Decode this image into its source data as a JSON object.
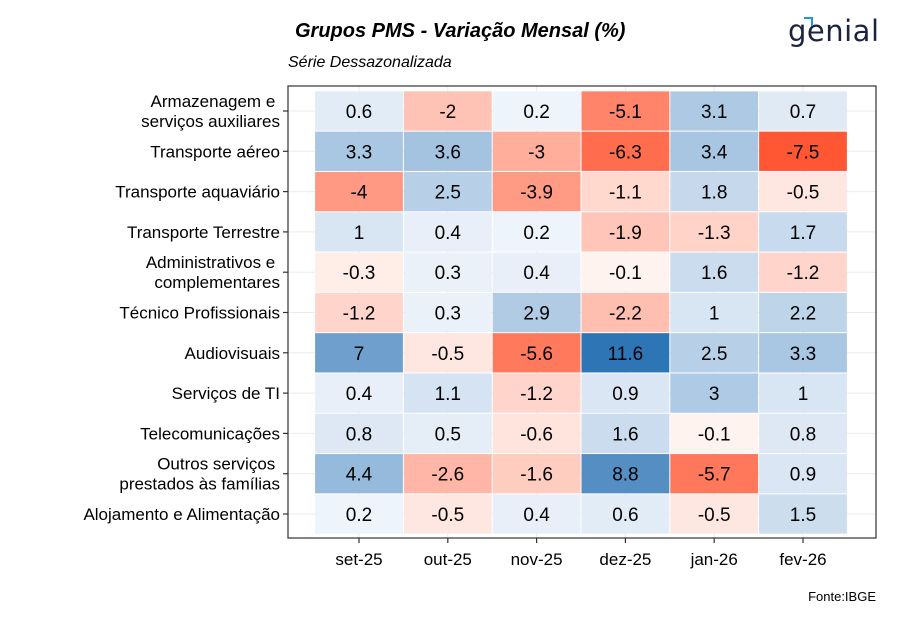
{
  "header": {
    "title": "Grupos PMS - Variação Mensal (%)",
    "subtitle": "Série Dessazonalizada",
    "logo_text": "genial"
  },
  "footer": {
    "source": "Fonte:IBGE"
  },
  "colors": {
    "negative_max": "#ff5733",
    "zero": "#ffffff",
    "positive_max": "#2e75b6",
    "grid": "#ebebeb",
    "border": "#333333"
  },
  "chart_data": {
    "type": "heatmap",
    "title": "Grupos PMS - Variação Mensal (%)",
    "subtitle": "Série Dessazonalizada",
    "xlabel": "",
    "ylabel": "",
    "x": [
      "set-25",
      "out-25",
      "nov-25",
      "dez-25",
      "jan-26",
      "fev-26"
    ],
    "y": [
      "Armazenagem e \nserviços auxiliares",
      "Transporte aéreo",
      "Transporte aquaviário",
      "Transporte Terrestre",
      "Administrativos e \ncomplementares",
      "Técnico Profissionais",
      "Audiovisuais",
      "Serviços de TI",
      "Telecomunicações",
      "Outros serviços \nprestados às famílias",
      "Alojamento e Alimentação"
    ],
    "values": [
      [
        0.6,
        -2,
        0.2,
        -5.1,
        3.1,
        0.7
      ],
      [
        3.3,
        3.6,
        -3,
        -6.3,
        3.4,
        -7.5
      ],
      [
        -4,
        2.5,
        -3.9,
        -1.1,
        1.8,
        -0.5
      ],
      [
        1,
        0.4,
        0.2,
        -1.9,
        -1.3,
        1.7
      ],
      [
        -0.3,
        0.3,
        0.4,
        -0.1,
        1.6,
        -1.2
      ],
      [
        -1.2,
        0.3,
        2.9,
        -2.2,
        1,
        2.2
      ],
      [
        7,
        -0.5,
        -5.6,
        11.6,
        2.5,
        3.3
      ],
      [
        0.4,
        1.1,
        -1.2,
        0.9,
        3,
        1
      ],
      [
        0.8,
        0.5,
        -0.6,
        1.6,
        -0.1,
        0.8
      ],
      [
        4.4,
        -2.6,
        -1.6,
        8.8,
        -5.7,
        0.9
      ],
      [
        0.2,
        -0.5,
        0.4,
        0.6,
        -0.5,
        1.5
      ]
    ],
    "color_range": [
      -7.5,
      11.6
    ],
    "grid": true,
    "legend": "none",
    "source": "Fonte:IBGE"
  }
}
